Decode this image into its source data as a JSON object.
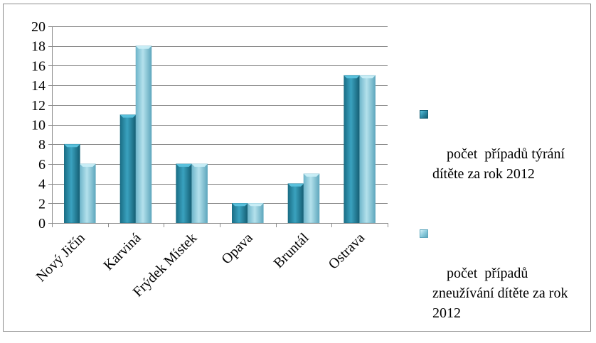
{
  "chart_data": {
    "type": "bar",
    "categories": [
      "Nový Jičín",
      "Karviná",
      "Frýdek Místek",
      "Opava",
      "Bruntál",
      "Ostrava"
    ],
    "series": [
      {
        "name": "počet  případů týrání dítěte za rok 2012",
        "values": [
          8,
          11,
          6,
          2,
          4,
          15
        ],
        "color": "#2e8ba6"
      },
      {
        "name": "počet  případů zneužívání dítěte za rok 2012",
        "values": [
          6,
          18,
          6,
          2,
          5,
          15
        ],
        "color": "#8ccbdc"
      }
    ],
    "ylim": [
      0,
      20
    ],
    "yticks": [
      0,
      2,
      4,
      6,
      8,
      10,
      12,
      14,
      16,
      18,
      20
    ],
    "grid": true,
    "legend_position": "right",
    "title": "",
    "xlabel": "",
    "ylabel": ""
  }
}
